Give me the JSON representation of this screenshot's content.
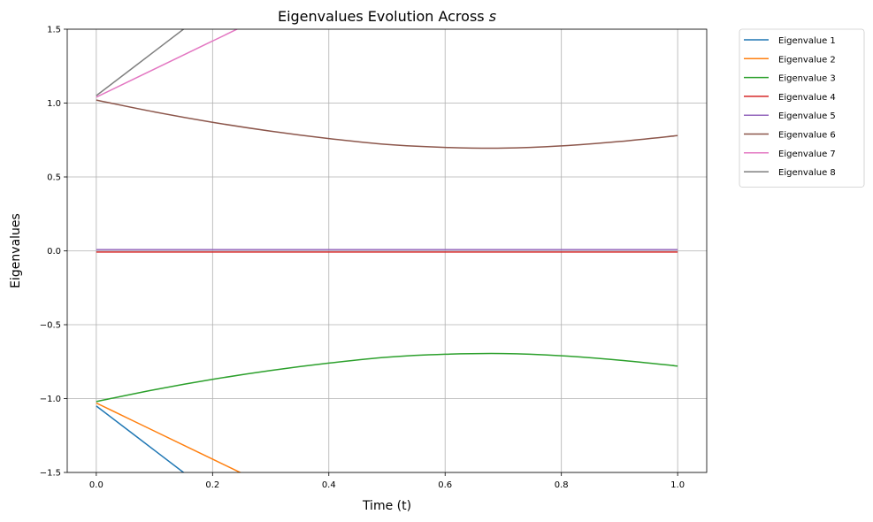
{
  "chart_data": {
    "type": "line",
    "title_main": "Eigenvalues Evolution Across ",
    "title_var": "s",
    "xlabel": "Time (t)",
    "ylabel": "Eigenvalues",
    "xlim": [
      -0.05,
      1.05
    ],
    "ylim": [
      -1.5,
      1.5
    ],
    "xticks": [
      0.0,
      0.2,
      0.4,
      0.6,
      0.8,
      1.0
    ],
    "xtick_labels": [
      "0.0",
      "0.2",
      "0.4",
      "0.6",
      "0.8",
      "1.0"
    ],
    "yticks": [
      -1.5,
      -1.0,
      -0.5,
      0.0,
      0.5,
      1.0,
      1.5
    ],
    "ytick_labels": [
      "−1.5",
      "−1.0",
      "−0.5",
      "0.0",
      "0.5",
      "1.0",
      "1.5"
    ],
    "grid": true,
    "legend_position": "outside-top-right",
    "series": [
      {
        "name": "Eigenvalue 1",
        "color": "#1f77b4",
        "x": [
          0.0,
          0.1,
          0.2,
          0.3
        ],
        "y": [
          -1.05,
          -1.35,
          -1.65,
          -1.95
        ]
      },
      {
        "name": "Eigenvalue 2",
        "color": "#ff7f0e",
        "x": [
          0.0,
          0.1,
          0.2,
          0.3
        ],
        "y": [
          -1.03,
          -1.22,
          -1.41,
          -1.6
        ]
      },
      {
        "name": "Eigenvalue 3",
        "color": "#2ca02c",
        "x": [
          0.0,
          0.1,
          0.2,
          0.3,
          0.4,
          0.5,
          0.6,
          0.7,
          0.8,
          0.9,
          1.0
        ],
        "y": [
          -1.02,
          -0.94,
          -0.87,
          -0.81,
          -0.76,
          -0.72,
          -0.7,
          -0.695,
          -0.71,
          -0.74,
          -0.78
        ]
      },
      {
        "name": "Eigenvalue 4",
        "color": "#d62728",
        "x": [
          0.0,
          1.0
        ],
        "y": [
          -0.008,
          -0.008
        ]
      },
      {
        "name": "Eigenvalue 5",
        "color": "#9467bd",
        "x": [
          0.0,
          1.0
        ],
        "y": [
          0.008,
          0.008
        ]
      },
      {
        "name": "Eigenvalue 6",
        "color": "#8c564b",
        "x": [
          0.0,
          0.1,
          0.2,
          0.3,
          0.4,
          0.5,
          0.6,
          0.7,
          0.8,
          0.9,
          1.0
        ],
        "y": [
          1.02,
          0.94,
          0.87,
          0.81,
          0.76,
          0.72,
          0.7,
          0.695,
          0.71,
          0.74,
          0.78
        ]
      },
      {
        "name": "Eigenvalue 7",
        "color": "#e377c2",
        "x": [
          0.0,
          0.1,
          0.2,
          0.3
        ],
        "y": [
          1.04,
          1.23,
          1.42,
          1.61
        ]
      },
      {
        "name": "Eigenvalue 8",
        "color": "#7f7f7f",
        "x": [
          0.0,
          0.1,
          0.2,
          0.3
        ],
        "y": [
          1.05,
          1.35,
          1.65,
          1.95
        ]
      }
    ]
  }
}
